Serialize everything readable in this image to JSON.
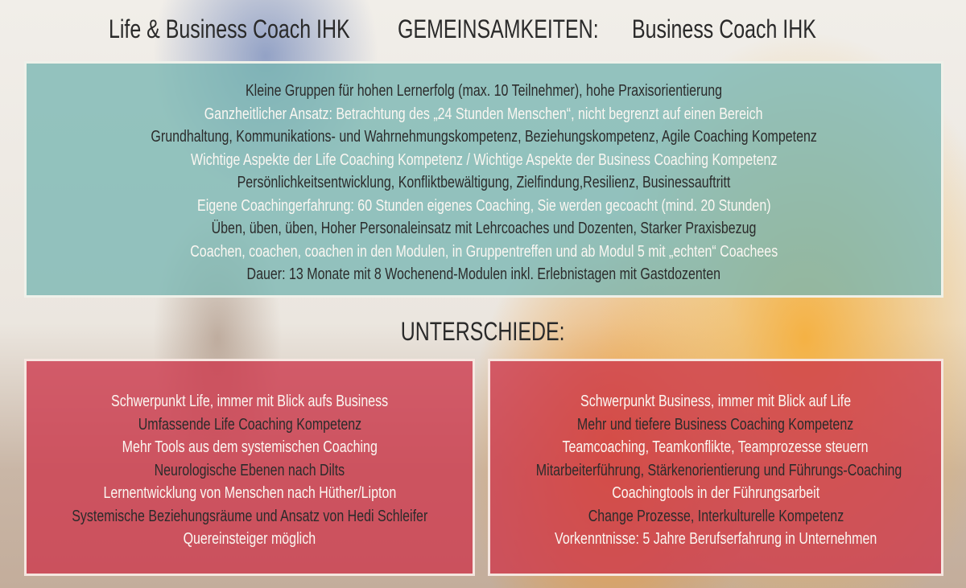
{
  "header": {
    "left": "Life & Business Coach IHK",
    "center": "GEMEINSAMKEITEN:",
    "right": "Business Coach IHK"
  },
  "common": [
    "Kleine Gruppen für hohen Lernerfolg (max. 10 Teilnehmer), hohe Praxisorientierung",
    "Ganzheitlicher Ansatz: Betrachtung des „24 Stunden Menschen“, nicht begrenzt auf einen Bereich",
    "Grundhaltung, Kommunikations- und Wahrnehmungskompetenz, Beziehungskompetenz, Agile Coaching Kompetenz",
    "Wichtige Aspekte der Life Coaching Kompetenz / Wichtige Aspekte der Business Coaching Kompetenz",
    "Persönlichkeitsentwicklung, Konfliktbewältigung, Zielfindung,Resilienz, Businessauftritt",
    "Eigene Coachingerfahrung: 60 Stunden eigenes Coaching, Sie werden gecoacht (mind. 20 Stunden)",
    "Üben, üben, üben, Hoher Personaleinsatz mit Lehrcoaches und Dozenten, Starker Praxisbezug",
    "Coachen, coachen, coachen in den Modulen, in Gruppentreffen und ab Modul 5 mit „echten“ Coachees",
    "Dauer: 13 Monate mit 8 Wochenend-Modulen inkl. Erlebnistagen mit Gastdozenten"
  ],
  "differences_title": "UNTERSCHIEDE:",
  "life": [
    "Schwerpunkt Life, immer mit Blick aufs Business",
    "Umfassende Life Coaching Kompetenz",
    "Mehr Tools aus dem systemischen Coaching",
    "Neurologische Ebenen nach Dilts",
    "Lernentwicklung von Menschen nach Hüther/Lipton",
    "Systemische Beziehungsräume und Ansatz von Hedi Schleifer",
    "Quereinsteiger möglich"
  ],
  "business": [
    "Schwerpunkt Business, immer mit Blick auf Life",
    "Mehr und tiefere Business Coaching Kompetenz",
    "Teamcoaching, Teamkonflikte, Teamprozesse steuern",
    "Mitarbeiterführung, Stärkenorientierung und Führungs-Coaching",
    "Coachingtools in der Führungsarbeit",
    "Change Prozesse, Interkulturelle Kompetenz",
    "Vorkenntnisse: 5 Jahre Berufserfahrung in Unternehmen"
  ],
  "colors": {
    "common_box": "#78b6b2",
    "difference_box": "#cd374b",
    "text_dark": "#2b2b2b",
    "text_light": "#fbf7f2"
  }
}
